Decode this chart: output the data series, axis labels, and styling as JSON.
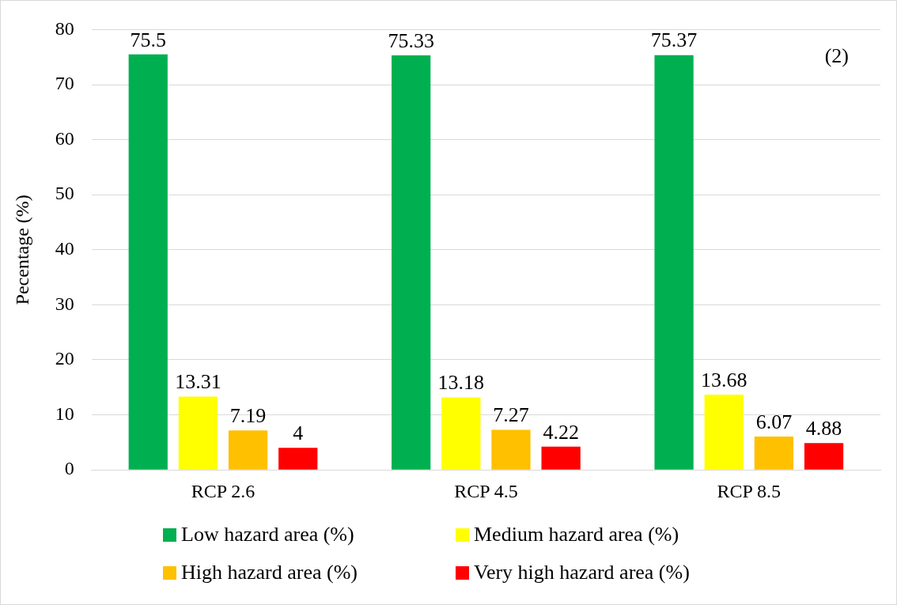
{
  "chart_data": {
    "type": "bar",
    "ylabel": "Pecentage (%)",
    "categories": [
      "RCP 2.6",
      "RCP 4.5",
      "RCP 8.5"
    ],
    "series": [
      {
        "name": "Low hazard area (%)",
        "color": "#00b050",
        "values": [
          75.5,
          75.33,
          75.37
        ]
      },
      {
        "name": "Medium hazard area (%)",
        "color": "#ffff00",
        "values": [
          13.31,
          13.18,
          13.68
        ]
      },
      {
        "name": "High hazard area (%)",
        "color": "#ffc000",
        "values": [
          7.19,
          7.27,
          6.07
        ]
      },
      {
        "name": "Very high hazard area (%)",
        "color": "#ff0000",
        "values": [
          4,
          4.22,
          4.88
        ]
      }
    ],
    "ylim": [
      0,
      80
    ],
    "yticks": [
      0,
      10,
      20,
      30,
      40,
      50,
      60,
      70,
      80
    ],
    "grid": "y",
    "legend": "bottom",
    "data_labels": true,
    "annotations": [
      "(2)"
    ]
  }
}
